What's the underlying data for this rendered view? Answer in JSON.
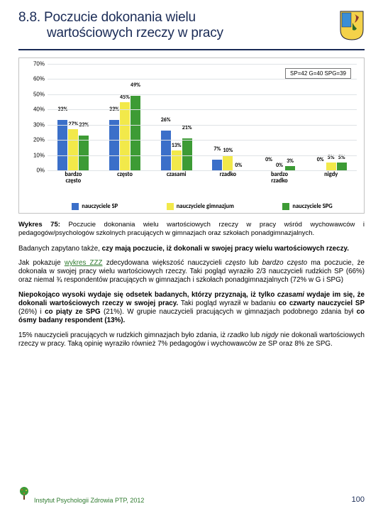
{
  "header": {
    "section_number": "8.8.",
    "title_line1": "Poczucie dokonania wielu",
    "title_line2": "wartościowych rzeczy w pracy"
  },
  "chart": {
    "note": "SP=42 G=40 SPG=39",
    "ymax_pct": 70,
    "ytick_step_pct": 10,
    "categories": [
      {
        "label_l1": "bardzo",
        "label_l2": "często",
        "values": [
          33,
          27,
          23
        ]
      },
      {
        "label_l1": "często",
        "label_l2": "",
        "values": [
          33,
          45,
          49
        ]
      },
      {
        "label_l1": "czasami",
        "label_l2": "",
        "values": [
          26,
          13,
          21
        ]
      },
      {
        "label_l1": "rzadko",
        "label_l2": "",
        "values": [
          7,
          10,
          0
        ]
      },
      {
        "label_l1": "bardzo",
        "label_l2": "rzadko",
        "values": [
          0,
          0,
          3
        ]
      },
      {
        "label_l1": "nigdy",
        "label_l2": "",
        "values": [
          0,
          5,
          5
        ]
      }
    ],
    "series": [
      {
        "name": "nauczyciele SP",
        "color": "#3b6fc9"
      },
      {
        "name": "nauczyciele gimnazjum",
        "color": "#f2e94a"
      },
      {
        "name": "nauczyciele SPG",
        "color": "#3d9b35"
      }
    ]
  },
  "caption": {
    "lead": "Wykres 75:",
    "rest": " Poczucie dokonania wielu wartościowych rzeczy w pracy wśród wychowawców i pedagogów/psychologów szkolnych pracujących w gimnazjach oraz szkołach ponadgimnazjalnych."
  },
  "body": {
    "p1": "Badanych zapytano także, <b>czy mają poczucie, iż dokonali w swojej pracy wielu wartościowych rzeczy.</b>",
    "p2": "Jak pokazuje <span class=\"green-u\">wykres ZZZ</span> zdecydowana większość nauczycieli <em>często</em> lub <em>bardzo często</em> ma poczucie, że dokonała w swojej pracy wielu wartościowych rzeczy. Taki pogląd wyraziło 2/3 nauczycieli rudzkich SP (66%) oraz niemal ¾ respondentów pracujących w gimnazjach i szkołach ponadgimnazjalnych (72% w G i SPG)",
    "p3": "<b>Niepokojąco wysoki wydaje się odsetek badanych, którzy przyznają, iż tylko <em>czasami</em> wydaje im się, że dokonali wartościowych rzeczy w swojej pracy.</b> Taki pogląd wyraził w badaniu <b>co czwarty nauczyciel SP</b> (26%) i <b>co piąty ze SPG</b> (21%). W grupie nauczycieli pracujących w gimnazjach podobnego zdania był <b>co ósmy badany respondent (13%).</b>",
    "p4": "15% nauczycieli pracujących w rudzkich gimnazjach było zdania, iż <em>rzadko</em> lub <em>nigdy</em> nie dokonali wartościowych rzeczy w pracy. Taką opinię wyraziło również 7% pedagogów i wychowawców ze SP oraz 8% ze SPG."
  },
  "footer": {
    "org": "Instytut Psychologii Zdrowia PTP, 2012",
    "page": "100"
  },
  "palette": {
    "title": "#1a2b56"
  }
}
